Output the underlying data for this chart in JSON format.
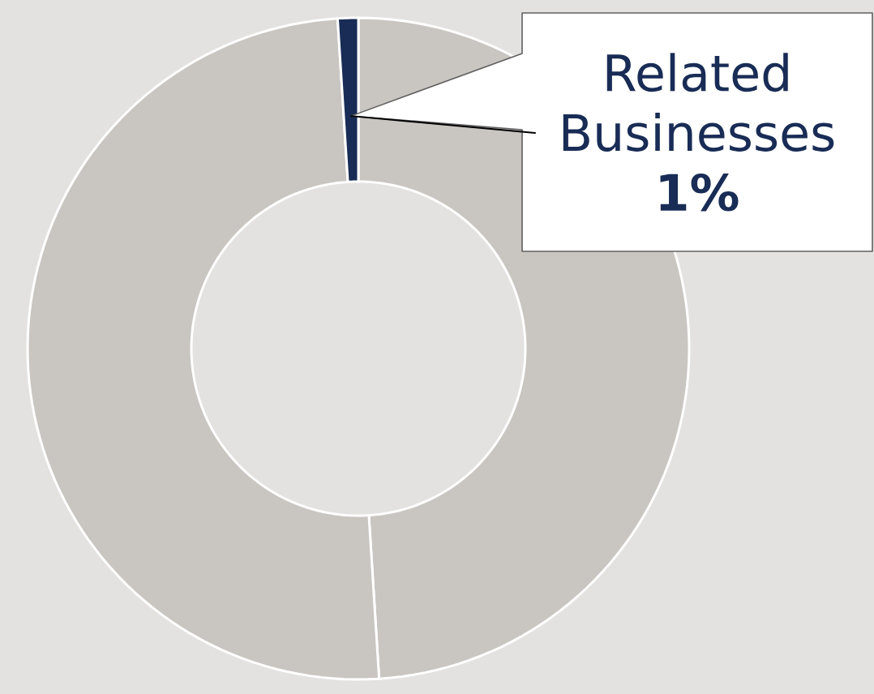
{
  "chart_data": {
    "type": "donut",
    "categories": [
      null,
      null,
      "Related Businesses"
    ],
    "values": [
      49,
      50,
      1
    ],
    "colors": [
      "#c9c5c1",
      "#c9c5c1",
      "#182c55"
    ],
    "value_labels": [
      null,
      null,
      "1%"
    ]
  }
}
